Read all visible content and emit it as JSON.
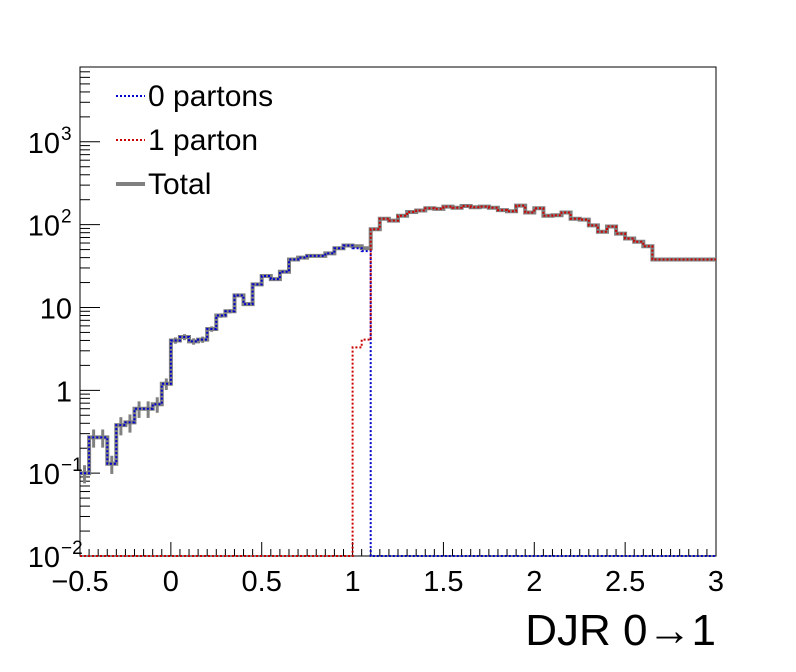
{
  "chart_data": {
    "type": "line",
    "xlabel": "DJR 0→1",
    "ylabel": "",
    "title": "",
    "xlim": [
      -0.5,
      3.0
    ],
    "ylim": [
      0.01,
      8000
    ],
    "y_scale": "log",
    "grid": false,
    "legend_position": "top-left",
    "x_tick_labels": [
      "−0.5",
      "0",
      "0.5",
      "1",
      "1.5",
      "2",
      "2.5",
      "3"
    ],
    "x_tick_values": [
      -0.5,
      0,
      0.5,
      1,
      1.5,
      2,
      2.5,
      3
    ],
    "y_ticks": [
      {
        "value": 0.01,
        "base": "10",
        "exp": "−2"
      },
      {
        "value": 0.1,
        "base": "10",
        "exp": "−1"
      },
      {
        "value": 1,
        "base": "1",
        "exp": ""
      },
      {
        "value": 10,
        "base": "10",
        "exp": ""
      },
      {
        "value": 100,
        "base": "10",
        "exp": "2"
      },
      {
        "value": 1000,
        "base": "10",
        "exp": "3"
      }
    ],
    "bin_width": 0.05,
    "x_edges_start": -0.5,
    "series": [
      {
        "name": "0 partons",
        "color": "#0000cc",
        "style": "dotted",
        "values": [
          0.1,
          0.27,
          0.27,
          0.13,
          0.38,
          0.41,
          0.6,
          0.6,
          0.68,
          1.2,
          4.0,
          4.4,
          3.9,
          4.1,
          5.5,
          8.0,
          9.0,
          14,
          11,
          19,
          24,
          22,
          27,
          38,
          40,
          42,
          42,
          45,
          52,
          56,
          52,
          48,
          0.01,
          0.01,
          0.01,
          0.01,
          0.01,
          0.01,
          0.01,
          0.01,
          0.01,
          0.01,
          0.01,
          0.01,
          0.01,
          0.01,
          0.01,
          0.01,
          0.01,
          0.01,
          0.01,
          0.01,
          0.01,
          0.01,
          0.01,
          0.01,
          0.01,
          0.01,
          0.01,
          0.01,
          0.01,
          0.01,
          0.01,
          0.01,
          0.01,
          0.01,
          0.01,
          0.01,
          0.01,
          0.01
        ]
      },
      {
        "name": "1 parton",
        "color": "#cc0000",
        "style": "dotted",
        "values": [
          0.01,
          0.01,
          0.01,
          0.01,
          0.01,
          0.01,
          0.01,
          0.01,
          0.01,
          0.01,
          0.01,
          0.01,
          0.01,
          0.01,
          0.01,
          0.01,
          0.01,
          0.01,
          0.01,
          0.01,
          0.01,
          0.01,
          0.01,
          0.01,
          0.01,
          0.01,
          0.01,
          0.01,
          0.01,
          0.01,
          3.3,
          4.1,
          88,
          118,
          112,
          128,
          142,
          148,
          158,
          155,
          165,
          160,
          168,
          162,
          165,
          160,
          150,
          145,
          170,
          140,
          158,
          128,
          130,
          140,
          118,
          115,
          98,
          82,
          95,
          78,
          68,
          62,
          55,
          38,
          38,
          38,
          38,
          38,
          38,
          38
        ]
      },
      {
        "name": "Total",
        "color": "#808080",
        "style": "solid",
        "values": [
          0.1,
          0.27,
          0.27,
          0.13,
          0.38,
          0.41,
          0.6,
          0.6,
          0.68,
          1.2,
          4.0,
          4.4,
          3.9,
          4.1,
          5.5,
          8.0,
          9.0,
          14,
          11,
          19,
          24,
          22,
          27,
          38,
          40,
          42,
          42,
          45,
          52,
          56,
          55,
          52,
          88,
          118,
          112,
          128,
          142,
          148,
          158,
          155,
          165,
          160,
          168,
          162,
          165,
          160,
          150,
          145,
          170,
          140,
          158,
          128,
          130,
          140,
          118,
          115,
          98,
          82,
          95,
          78,
          68,
          62,
          55,
          38,
          38,
          38,
          38,
          38,
          38,
          38
        ]
      }
    ]
  },
  "legend": {
    "items": [
      {
        "label": "0 partons",
        "color": "#0000cc",
        "style": "dotted"
      },
      {
        "label": "1 parton",
        "color": "#cc0000",
        "style": "dotted"
      },
      {
        "label": "Total",
        "color": "#808080",
        "style": "solid"
      }
    ]
  }
}
